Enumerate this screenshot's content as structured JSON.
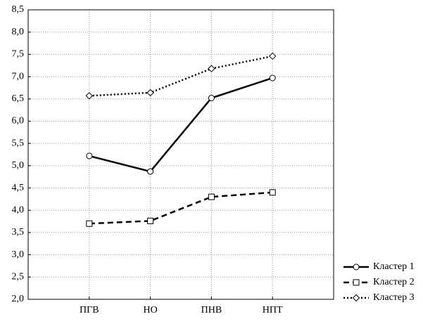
{
  "chart_data": {
    "type": "line",
    "categories": [
      "ПГВ",
      "НО",
      "ПНВ",
      "НПТ"
    ],
    "series": [
      {
        "name": "Кластер 1",
        "color": "#000000",
        "line_style": "solid",
        "marker": "circle",
        "values": [
          5.22,
          4.87,
          6.52,
          6.97
        ]
      },
      {
        "name": "Кластер 2",
        "color": "#000000",
        "line_style": "dashed",
        "marker": "square",
        "values": [
          3.7,
          3.76,
          4.3,
          4.4
        ]
      },
      {
        "name": "Кластер 3",
        "color": "#000000",
        "line_style": "dotted",
        "marker": "diamond",
        "values": [
          6.57,
          6.64,
          7.18,
          7.46
        ]
      }
    ],
    "ylim": [
      2.0,
      8.5
    ],
    "yticks": [
      {
        "value": 2.0,
        "label": "2,0"
      },
      {
        "value": 2.5,
        "label": "2,5"
      },
      {
        "value": 3.0,
        "label": "3,0"
      },
      {
        "value": 3.5,
        "label": "3,5"
      },
      {
        "value": 4.0,
        "label": "4,0"
      },
      {
        "value": 4.5,
        "label": "4,5"
      },
      {
        "value": 5.0,
        "label": "5,0"
      },
      {
        "value": 5.5,
        "label": "5,5"
      },
      {
        "value": 6.0,
        "label": "6,0"
      },
      {
        "value": 6.5,
        "label": "6,5"
      },
      {
        "value": 7.0,
        "label": "7,0"
      },
      {
        "value": 7.5,
        "label": "7,5"
      },
      {
        "value": 8.0,
        "label": "8,0"
      },
      {
        "value": 8.5,
        "label": "8,5"
      }
    ],
    "grid": true,
    "legend": "lower right"
  }
}
